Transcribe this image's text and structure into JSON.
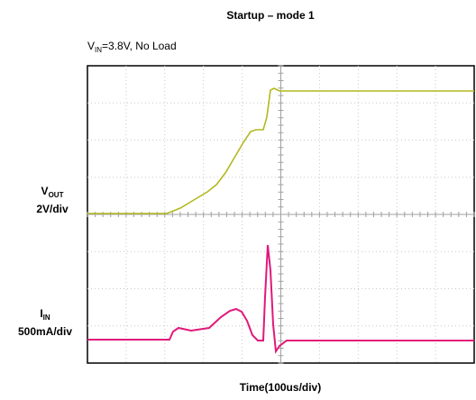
{
  "title": "Startup – mode 1",
  "condition": {
    "symbol": "V",
    "subscript": "IN",
    "text": "=3.8V, No Load"
  },
  "channels": [
    {
      "symbol": "V",
      "subscript": "OUT",
      "scale": "2V/div"
    },
    {
      "symbol": "I",
      "subscript": "IN",
      "scale": "500mA/div"
    }
  ],
  "x_label": "Time(100us/div)"
}
